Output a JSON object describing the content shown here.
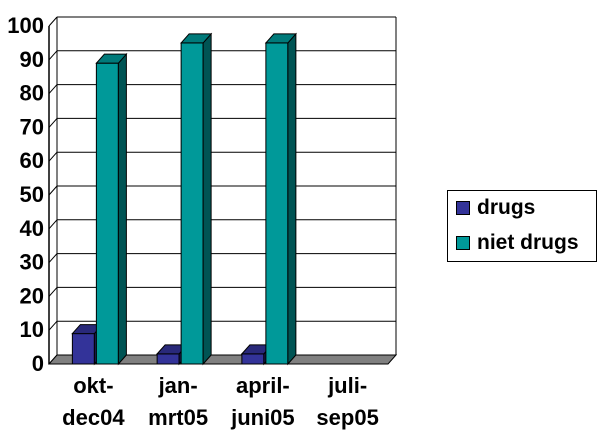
{
  "chart_data": {
    "type": "bar",
    "title": "",
    "xlabel": "",
    "ylabel": "",
    "ylim": [
      0,
      100
    ],
    "yticks": [
      0,
      10,
      20,
      30,
      40,
      50,
      60,
      70,
      80,
      90,
      100
    ],
    "categories": [
      [
        "okt-",
        "dec04"
      ],
      [
        "jan-",
        "mrt05"
      ],
      [
        "april-",
        "juni05"
      ],
      [
        "juli-",
        "sep05"
      ]
    ],
    "series": [
      {
        "name": "drugs",
        "color": "#333399",
        "values": [
          9,
          3,
          3,
          0
        ]
      },
      {
        "name": "niet drugs",
        "color": "#009999",
        "values": [
          89,
          95,
          95,
          0
        ]
      }
    ],
    "grid": true,
    "legend_position": "right",
    "three_d": true
  }
}
